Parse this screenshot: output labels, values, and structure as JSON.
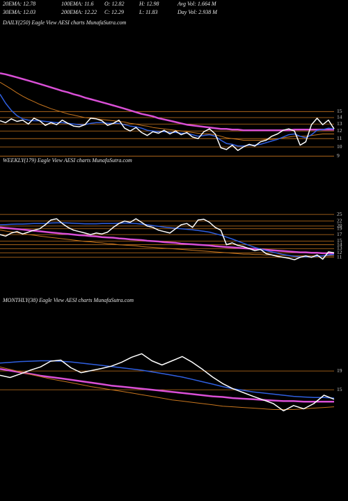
{
  "header": [
    [
      "20EMA: 12.78",
      "100EMA: 11.6",
      "O: 12.82",
      "H: 12.98",
      "Avg Vol: 1.664  M"
    ],
    [
      "30EMA: 12.03",
      "200EMA: 12.22",
      "C: 12.29",
      "L: 11.83",
      "Day Vol: 2.938  M"
    ]
  ],
  "chart_data": [
    {
      "type": "line",
      "title": "DAILY(250) Eagle   View   AESI charts MunafaSutra.com",
      "log": true,
      "grid": true,
      "grid_color": "#c8761e",
      "ylim": [
        8.6,
        46
      ],
      "yticks": [
        15,
        14,
        13,
        12,
        11,
        10,
        9
      ],
      "series": [
        {
          "color": "#d94fd6",
          "width": 2.5,
          "values": [
            23.3,
            23.0,
            22.6,
            22.2,
            21.8,
            21.4,
            21.0,
            20.6,
            20.2,
            19.8,
            19.4,
            19.0,
            18.7,
            18.3,
            18.0,
            17.6,
            17.3,
            17.0,
            16.7,
            16.4,
            16.1,
            15.8,
            15.5,
            15.2,
            14.9,
            14.6,
            14.4,
            14.2,
            13.9,
            13.7,
            13.5,
            13.3,
            13.1,
            12.9,
            12.8,
            12.7,
            12.6,
            12.5,
            12.4,
            12.3,
            12.3,
            12.2,
            12.2,
            12.1,
            12.1,
            12.1,
            12.1,
            12.1,
            12.1,
            12.1,
            12.1,
            12.1,
            12.2,
            12.2,
            12.2,
            12.2,
            12.2,
            12.2,
            12.2,
            12.2
          ]
        },
        {
          "color": "#c8761e",
          "width": 1,
          "values": [
            21,
            20.2,
            19.4,
            18.6,
            17.9,
            17.3,
            16.8,
            16.3,
            15.9,
            15.5,
            15.2,
            14.9,
            14.6,
            14.4,
            14.2,
            14.0,
            13.9,
            13.8,
            13.7,
            13.6,
            13.5,
            13.4,
            13.3,
            13.1,
            13.0,
            12.8,
            12.7,
            12.5,
            12.4,
            12.3,
            12.2,
            12.1,
            12.0,
            11.9,
            11.8,
            11.7,
            11.6,
            11.6,
            11.5,
            11.3,
            11.1,
            11.0,
            10.9,
            10.8,
            10.8,
            10.8,
            10.8,
            10.9,
            10.9,
            11.0,
            11.1,
            11.2,
            11.3,
            11.3,
            11.3,
            11.4,
            11.5,
            11.6,
            11.6,
            11.6
          ]
        },
        {
          "color": "#2f5fe0",
          "width": 1.5,
          "values": [
            18.3,
            16.5,
            15.2,
            14.3,
            13.8,
            13.6,
            13.5,
            13.5,
            13.4,
            13.3,
            13.2,
            13.2,
            13.1,
            13.0,
            12.9,
            12.9,
            13.1,
            13.2,
            13.2,
            13.1,
            13.1,
            13.1,
            12.9,
            12.7,
            12.6,
            12.4,
            12.1,
            12.0,
            11.9,
            11.9,
            11.8,
            11.8,
            11.7,
            11.7,
            11.5,
            11.3,
            11.4,
            11.5,
            11.3,
            10.8,
            10.4,
            10.3,
            10.1,
            10.1,
            10.2,
            10.2,
            10.3,
            10.5,
            10.7,
            10.9,
            11.2,
            11.5,
            11.6,
            11.3,
            11.1,
            11.5,
            12.1,
            12.2,
            12.4,
            12.3
          ]
        },
        {
          "color": "#ffffff",
          "width": 1.5,
          "values": [
            13.5,
            13.2,
            13.8,
            13.4,
            13.6,
            13.0,
            13.9,
            13.5,
            12.8,
            13.2,
            12.9,
            13.6,
            13.1,
            12.7,
            12.6,
            12.9,
            13.9,
            13.8,
            13.5,
            12.8,
            13.1,
            13.6,
            12.4,
            12.0,
            12.5,
            11.8,
            11.4,
            11.9,
            11.7,
            12.1,
            11.6,
            12.0,
            11.5,
            11.8,
            11.2,
            11.0,
            11.9,
            12.3,
            11.6,
            9.9,
            9.7,
            10.2,
            9.6,
            10.0,
            10.3,
            10.1,
            10.6,
            10.8,
            11.3,
            11.6,
            12.1,
            12.3,
            12.0,
            10.2,
            10.6,
            12.9,
            13.9,
            12.9,
            13.6,
            12.3
          ]
        }
      ]
    },
    {
      "type": "line",
      "title": "WEEKLY(179) Eagle   View   AESI charts MunafaSutra.com",
      "log": true,
      "grid": true,
      "grid_color": "#c8761e",
      "ylim": [
        8.4,
        62
      ],
      "yticks": [
        25,
        22,
        20,
        19,
        17,
        15,
        14,
        13,
        12,
        11
      ],
      "series": [
        {
          "color": "#d94fd6",
          "width": 2.5,
          "values": [
            19.5,
            19.3,
            19.1,
            18.9,
            18.7,
            18.5,
            18.3,
            18.1,
            17.9,
            17.7,
            17.5,
            17.3,
            17.2,
            17.0,
            16.8,
            16.7,
            16.5,
            16.4,
            16.2,
            16.1,
            16.0,
            15.8,
            15.7,
            15.5,
            15.4,
            15.3,
            15.1,
            15.0,
            14.9,
            14.7,
            14.6,
            14.5,
            14.3,
            14.2,
            14.1,
            14.0,
            13.9,
            13.8,
            13.6,
            13.5,
            13.4,
            13.3,
            13.2,
            13.1,
            13.0,
            12.9,
            12.8,
            12.7,
            12.6,
            12.5,
            12.4,
            12.3,
            12.2,
            12.1,
            12.1,
            12.0,
            12.0,
            11.9,
            11.9,
            11.8
          ]
        },
        {
          "color": "#c8761e",
          "width": 1,
          "values": [
            18.5,
            18.2,
            17.9,
            17.6,
            17.3,
            17.0,
            16.8,
            16.5,
            16.3,
            16.1,
            15.9,
            15.7,
            15.5,
            15.3,
            15.1,
            14.9,
            14.8,
            14.6,
            14.5,
            14.3,
            14.2,
            14.0,
            13.9,
            13.8,
            13.7,
            13.5,
            13.4,
            13.3,
            13.2,
            13.1,
            13.0,
            12.9,
            12.8,
            12.7,
            12.6,
            12.5,
            12.4,
            12.3,
            12.2,
            12.1,
            12.0,
            11.9,
            11.8,
            11.7,
            11.7,
            11.6,
            11.6,
            11.5,
            11.5,
            11.4,
            11.4,
            11.4,
            11.3,
            11.3,
            11.3,
            11.3,
            11.3,
            11.3,
            11.3,
            11.3
          ]
        },
        {
          "color": "#2f5fe0",
          "width": 1.5,
          "values": [
            20.5,
            20.6,
            20.7,
            20.8,
            20.8,
            20.9,
            21,
            21,
            21,
            21.2,
            21.3,
            21.3,
            21.2,
            21.1,
            21,
            20.9,
            20.9,
            20.9,
            21,
            21,
            21,
            21.1,
            21.2,
            21.1,
            21,
            20.8,
            20.5,
            20.2,
            19.9,
            19.6,
            19.4,
            19.2,
            19,
            18.8,
            18.6,
            18.4,
            18.1,
            17.8,
            17.3,
            16.8,
            16.2,
            15.6,
            15.0,
            14.4,
            13.8,
            13.3,
            12.9,
            12.5,
            12.2,
            11.9,
            11.6,
            11.4,
            11.2,
            11.1,
            11.1,
            11.1,
            11.2,
            11.3,
            11.5,
            11.6
          ]
        },
        {
          "color": "#ffffff",
          "width": 1.5,
          "values": [
            17,
            16.5,
            17.5,
            18,
            17.2,
            17.8,
            18.5,
            19,
            20.5,
            22.5,
            23,
            21,
            19.5,
            18.5,
            18,
            17.5,
            17,
            17.5,
            17.2,
            17.8,
            19.5,
            21,
            22,
            21.5,
            23,
            21.5,
            20,
            19.5,
            18.5,
            18,
            17.5,
            19,
            20.5,
            21,
            19.5,
            22.5,
            22.8,
            21.5,
            19.5,
            18.5,
            14,
            14.5,
            13.8,
            13.5,
            13,
            12.5,
            12.8,
            11.8,
            11.5,
            11.2,
            11,
            10.8,
            10.5,
            11,
            11.3,
            11,
            11.5,
            10.6,
            12.2,
            12
          ]
        }
      ]
    },
    {
      "type": "line",
      "title": "MONTHLY(38) Eagle   View   AESI charts MunafaSutra.com",
      "log": true,
      "grid": true,
      "grid_color": "#c8761e",
      "ylim": [
        4.4,
        43
      ],
      "yticks": [
        19,
        15
      ],
      "series": [
        {
          "color": "#d94fd6",
          "width": 2.5,
          "values": [
            19.5,
            19.1,
            18.7,
            18.3,
            17.9,
            17.6,
            17.3,
            17.0,
            16.7,
            16.4,
            16.1,
            15.8,
            15.6,
            15.4,
            15.2,
            15.0,
            14.8,
            14.6,
            14.4,
            14.2,
            14.0,
            13.8,
            13.7,
            13.5,
            13.4,
            13.3,
            13.2,
            13.1,
            13.0,
            13.0,
            12.9,
            12.9,
            12.9,
            12.9
          ]
        },
        {
          "color": "#c8761e",
          "width": 1,
          "values": [
            20,
            19.4,
            18.8,
            18.2,
            17.7,
            17.2,
            16.8,
            16.4,
            16.0,
            15.6,
            15.3,
            15.0,
            14.7,
            14.4,
            14.1,
            13.8,
            13.5,
            13.2,
            13.0,
            12.8,
            12.6,
            12.4,
            12.2,
            12.1,
            12.0,
            11.9,
            11.8,
            11.7,
            11.7,
            11.7,
            11.8,
            11.9,
            12.0,
            12.1
          ]
        },
        {
          "color": "#2f5fe0",
          "width": 1.5,
          "values": [
            21,
            21.2,
            21.4,
            21.5,
            21.6,
            21.6,
            21.5,
            21.3,
            21.0,
            20.7,
            20.4,
            20.1,
            19.8,
            19.5,
            19.2,
            18.8,
            18.4,
            18.0,
            17.6,
            17.1,
            16.6,
            16.1,
            15.6,
            15.2,
            14.9,
            14.6,
            14.4,
            14.2,
            14.0,
            13.8,
            13.7,
            13.6,
            13.6,
            13.5
          ]
        },
        {
          "color": "#ffffff",
          "width": 1.5,
          "values": [
            18,
            17.5,
            18.3,
            19.2,
            20,
            21.5,
            21.8,
            19.8,
            18.6,
            19.1,
            19.6,
            20.2,
            21.2,
            22.6,
            23.6,
            21.6,
            20.5,
            21.6,
            22.8,
            21.2,
            19.4,
            17.6,
            16.2,
            15.2,
            14.5,
            13.8,
            13.2,
            12.6,
            11.5,
            12.3,
            11.8,
            12.6,
            14,
            13.3
          ]
        }
      ]
    }
  ]
}
